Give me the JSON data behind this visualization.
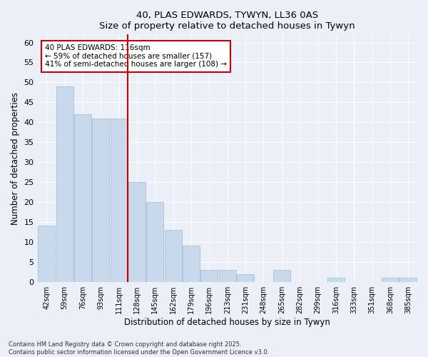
{
  "title": "40, PLAS EDWARDS, TYWYN, LL36 0AS",
  "subtitle": "Size of property relative to detached houses in Tywyn",
  "xlabel": "Distribution of detached houses by size in Tywyn",
  "ylabel": "Number of detached properties",
  "bar_labels": [
    "42sqm",
    "59sqm",
    "76sqm",
    "93sqm",
    "111sqm",
    "128sqm",
    "145sqm",
    "162sqm",
    "179sqm",
    "196sqm",
    "213sqm",
    "231sqm",
    "248sqm",
    "265sqm",
    "282sqm",
    "299sqm",
    "316sqm",
    "333sqm",
    "351sqm",
    "368sqm",
    "385sqm"
  ],
  "bar_values": [
    14,
    49,
    42,
    41,
    41,
    25,
    20,
    13,
    9,
    3,
    3,
    2,
    0,
    3,
    0,
    0,
    1,
    0,
    0,
    1,
    1
  ],
  "bar_color": "#c9d9ec",
  "bar_edge_color": "#a8bfd8",
  "vline_x": 4.5,
  "vline_color": "#cc0000",
  "ylim": [
    0,
    62
  ],
  "yticks": [
    0,
    5,
    10,
    15,
    20,
    25,
    30,
    35,
    40,
    45,
    50,
    55,
    60
  ],
  "annotation_text": "40 PLAS EDWARDS: 116sqm\n← 59% of detached houses are smaller (157)\n41% of semi-detached houses are larger (108) →",
  "annotation_box_color": "#ffffff",
  "annotation_box_edge_color": "#cc0000",
  "footer_line1": "Contains HM Land Registry data © Crown copyright and database right 2025.",
  "footer_line2": "Contains public sector information licensed under the Open Government Licence v3.0.",
  "background_color": "#eaeff8",
  "grid_color": "#ffffff"
}
